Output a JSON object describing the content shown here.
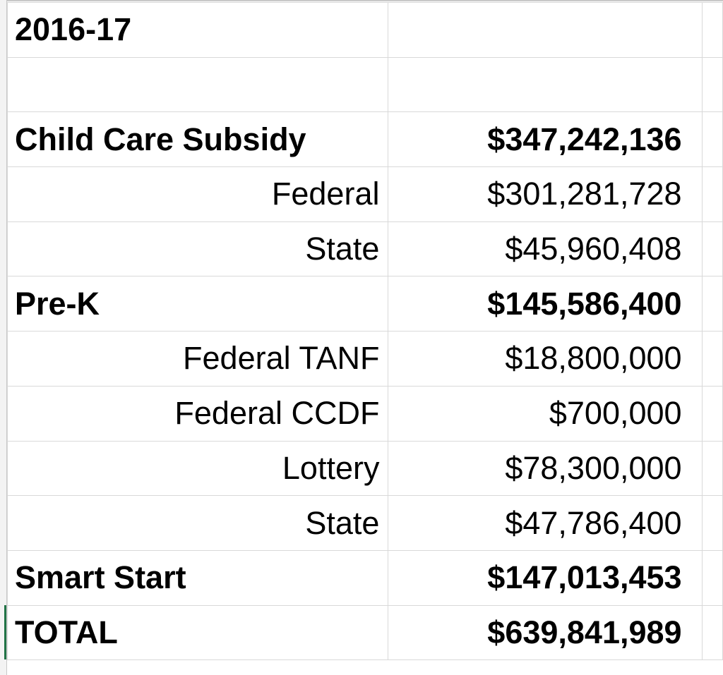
{
  "heading": "2016-17",
  "rows": [
    {
      "label": "Child Care Subsidy",
      "amount": "$347,242,136"
    },
    {
      "label": "Federal",
      "amount": "$301,281,728"
    },
    {
      "label": "State",
      "amount": "$45,960,408"
    },
    {
      "label": "Pre-K",
      "amount": "$145,586,400"
    },
    {
      "label": "Federal TANF",
      "amount": "$18,800,000"
    },
    {
      "label": "Federal CCDF",
      "amount": "$700,000"
    },
    {
      "label": "Lottery",
      "amount": "$78,300,000"
    },
    {
      "label": "State",
      "amount": "$47,786,400"
    },
    {
      "label": "Smart Start",
      "amount": "$147,013,453"
    },
    {
      "label": "TOTAL",
      "amount": "$639,841,989"
    }
  ]
}
